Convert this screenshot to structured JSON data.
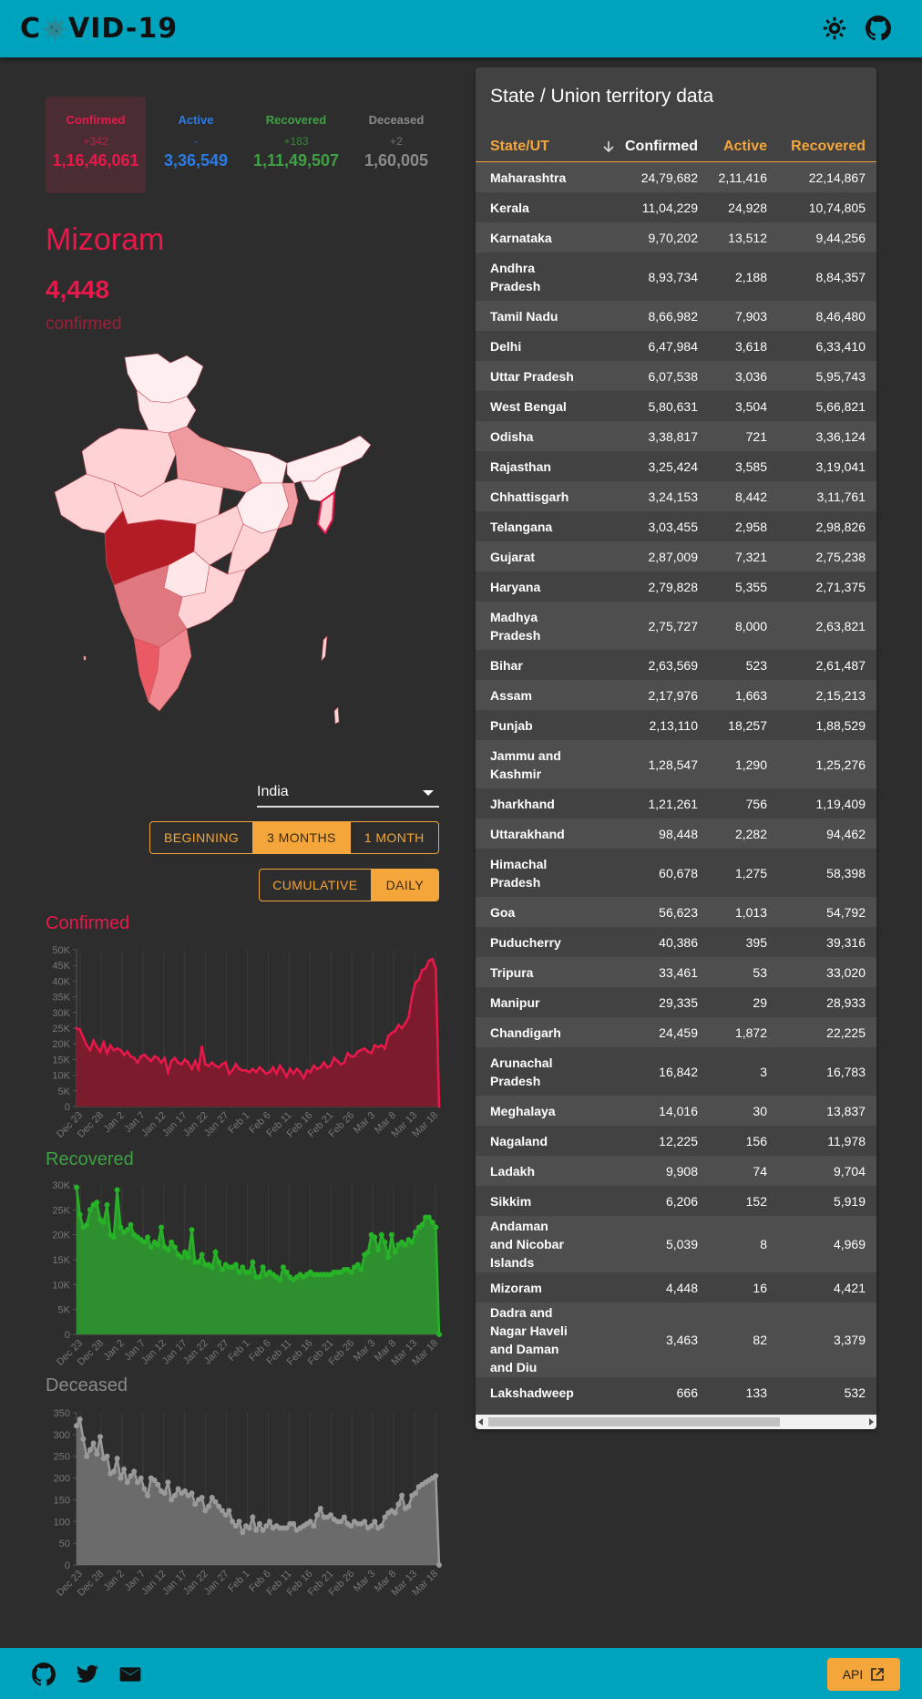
{
  "header": {
    "logo_text_left": "C",
    "logo_text_right": "VID-19",
    "icons": [
      "theme-icon",
      "github-icon"
    ]
  },
  "stats": [
    {
      "label": "Confirmed",
      "delta": "+342",
      "value": "1,16,46,061",
      "color": "#e8194a"
    },
    {
      "label": "Active",
      "delta": "-",
      "value": "3,36,549",
      "color": "#2a7be4"
    },
    {
      "label": "Recovered",
      "delta": "+183",
      "value": "1,11,49,507",
      "color": "#3ea043"
    },
    {
      "label": "Deceased",
      "delta": "+2",
      "value": "1,60,005",
      "color": "#8a8a8a"
    }
  ],
  "region": {
    "name": "Mizoram",
    "count": "4,448",
    "type": "confirmed"
  },
  "select": {
    "value": "India"
  },
  "time_range": {
    "options": [
      "BEGINNING",
      "3 MONTHS",
      "1 MONTH"
    ],
    "selected": "3 MONTHS"
  },
  "mode": {
    "options": [
      "CUMULATIVE",
      "DAILY"
    ],
    "selected": "DAILY"
  },
  "chart_data": [
    {
      "type": "area",
      "title": "Confirmed",
      "color": "#e8194a",
      "x_ticks": [
        "Dec 23",
        "Dec 28",
        "Jan 2",
        "Jan 7",
        "Jan 12",
        "Jan 17",
        "Jan 22",
        "Jan 27",
        "Feb 1",
        "Feb 6",
        "Feb 11",
        "Feb 16",
        "Feb 21",
        "Feb 26",
        "Mar 3",
        "Mar 8",
        "Mar 13",
        "Mar 18"
      ],
      "y_ticks": [
        "0",
        "5K",
        "10K",
        "15K",
        "20K",
        "25K",
        "30K",
        "35K",
        "40K",
        "45K",
        "50K"
      ],
      "ylim": [
        0,
        50000
      ],
      "values": [
        25000,
        24500,
        22000,
        19500,
        18000,
        21000,
        19000,
        17500,
        20500,
        17000,
        19500,
        18000,
        18500,
        18000,
        16500,
        17500,
        16000,
        15500,
        14000,
        16000,
        16500,
        15500,
        14500,
        16000,
        15500,
        14000,
        15500,
        11000,
        14500,
        15500,
        14000,
        13500,
        15000,
        14000,
        12000,
        14500,
        12000,
        19000,
        13500,
        13000,
        14000,
        13000,
        12500,
        13500,
        14000,
        10500,
        11500,
        13500,
        12000,
        11500,
        11500,
        11000,
        12000,
        11000,
        12500,
        11500,
        10500,
        11000,
        12500,
        10500,
        13000,
        11500,
        9500,
        12000,
        10500,
        12000,
        11000,
        9000,
        11500,
        11000,
        13000,
        12000,
        12500,
        14000,
        12500,
        13000,
        15500,
        14500,
        13500,
        14000,
        17000,
        16000,
        16000,
        17500,
        18000,
        18500,
        17500,
        17000,
        19500,
        19000,
        19500,
        18500,
        22500,
        23500,
        24000,
        26000,
        25000,
        26500,
        28500,
        35000,
        39500,
        40500,
        43500,
        44000,
        46500,
        47000,
        44000,
        0
      ]
    },
    {
      "type": "area",
      "title": "Recovered",
      "color": "#3ea043",
      "x_ticks": [
        "Dec 23",
        "Dec 28",
        "Jan 2",
        "Jan 7",
        "Jan 12",
        "Jan 17",
        "Jan 22",
        "Jan 27",
        "Feb 1",
        "Feb 6",
        "Feb 11",
        "Feb 16",
        "Feb 21",
        "Feb 26",
        "Mar 3",
        "Mar 8",
        "Mar 13",
        "Mar 18"
      ],
      "y_ticks": [
        "0",
        "5K",
        "10K",
        "15K",
        "20K",
        "25K",
        "30K"
      ],
      "ylim": [
        0,
        30000
      ],
      "values": [
        29500,
        24000,
        21500,
        22000,
        25000,
        26000,
        26500,
        23000,
        22500,
        26000,
        20000,
        19500,
        29000,
        21500,
        20500,
        21000,
        22000,
        20000,
        19500,
        19000,
        18500,
        19500,
        17500,
        18500,
        18000,
        21500,
        17500,
        17000,
        18500,
        17500,
        16000,
        15500,
        16500,
        15500,
        21000,
        14500,
        14500,
        16000,
        14000,
        14000,
        13500,
        16500,
        14500,
        13000,
        14000,
        13500,
        13500,
        14000,
        12500,
        13500,
        12500,
        12500,
        14500,
        11500,
        11500,
        13500,
        12000,
        12500,
        12000,
        11500,
        11000,
        13500,
        12500,
        11500,
        11000,
        11500,
        12000,
        11500,
        12000,
        12500,
        12000,
        12000,
        12000,
        12000,
        12000,
        12000,
        12500,
        12500,
        12500,
        13000,
        13000,
        12500,
        13500,
        14000,
        13000,
        16000,
        16500,
        20000,
        19500,
        17000,
        20000,
        18500,
        15500,
        20000,
        16500,
        18000,
        18500,
        18000,
        19000,
        18500,
        20500,
        21500,
        22000,
        23500,
        23500,
        22500,
        21500,
        0
      ]
    },
    {
      "type": "area",
      "title": "Deceased",
      "color": "#8a8a8a",
      "x_ticks": [
        "Dec 23",
        "Dec 28",
        "Jan 2",
        "Jan 7",
        "Jan 12",
        "Jan 17",
        "Jan 22",
        "Jan 27",
        "Feb 1",
        "Feb 6",
        "Feb 11",
        "Feb 16",
        "Feb 21",
        "Feb 26",
        "Mar 3",
        "Mar 8",
        "Mar 13",
        "Mar 18"
      ],
      "y_ticks": [
        "0",
        "50",
        "100",
        "150",
        "200",
        "250",
        "300",
        "350"
      ],
      "ylim": [
        0,
        350
      ],
      "values": [
        320,
        335,
        290,
        250,
        265,
        280,
        255,
        295,
        245,
        250,
        210,
        215,
        245,
        200,
        220,
        190,
        205,
        215,
        190,
        200,
        175,
        160,
        200,
        195,
        185,
        170,
        165,
        190,
        150,
        160,
        175,
        165,
        170,
        160,
        165,
        140,
        150,
        155,
        125,
        135,
        155,
        145,
        135,
        125,
        115,
        125,
        100,
        90,
        100,
        75,
        90,
        85,
        110,
        80,
        95,
        80,
        90,
        100,
        85,
        90,
        85,
        85,
        85,
        95,
        95,
        80,
        85,
        90,
        95,
        100,
        90,
        115,
        130,
        110,
        110,
        115,
        105,
        100,
        100,
        110,
        95,
        90,
        100,
        95,
        95,
        100,
        85,
        90,
        100,
        85,
        90,
        110,
        120,
        125,
        120,
        140,
        160,
        130,
        135,
        160,
        165,
        180,
        185,
        190,
        195,
        200,
        205,
        0
      ]
    }
  ],
  "table": {
    "title": "State / Union territory data",
    "headers": {
      "name": "State/UT",
      "confirmed": "Confirmed",
      "active": "Active",
      "recovered": "Recovered"
    },
    "rows": [
      {
        "n1": "Maharashtra",
        "n2": "",
        "n3": "",
        "c": "24,79,682",
        "a": "2,11,416",
        "r": "22,14,867"
      },
      {
        "n1": "Kerala",
        "n2": "",
        "n3": "",
        "c": "11,04,229",
        "a": "24,928",
        "r": "10,74,805"
      },
      {
        "n1": "Karnataka",
        "n2": "",
        "n3": "",
        "c": "9,70,202",
        "a": "13,512",
        "r": "9,44,256"
      },
      {
        "n1": "Andhra",
        "n2": "Pradesh",
        "n3": "",
        "c": "8,93,734",
        "a": "2,188",
        "r": "8,84,357"
      },
      {
        "n1": "Tamil Nadu",
        "n2": "",
        "n3": "",
        "c": "8,66,982",
        "a": "7,903",
        "r": "8,46,480"
      },
      {
        "n1": "Delhi",
        "n2": "",
        "n3": "",
        "c": "6,47,984",
        "a": "3,618",
        "r": "6,33,410"
      },
      {
        "n1": "Uttar Pradesh",
        "n2": "",
        "n3": "",
        "c": "6,07,538",
        "a": "3,036",
        "r": "5,95,743"
      },
      {
        "n1": "West Bengal",
        "n2": "",
        "n3": "",
        "c": "5,80,631",
        "a": "3,504",
        "r": "5,66,821"
      },
      {
        "n1": "Odisha",
        "n2": "",
        "n3": "",
        "c": "3,38,817",
        "a": "721",
        "r": "3,36,124"
      },
      {
        "n1": "Rajasthan",
        "n2": "",
        "n3": "",
        "c": "3,25,424",
        "a": "3,585",
        "r": "3,19,041"
      },
      {
        "n1": "Chhattisgarh",
        "n2": "",
        "n3": "",
        "c": "3,24,153",
        "a": "8,442",
        "r": "3,11,761"
      },
      {
        "n1": "Telangana",
        "n2": "",
        "n3": "",
        "c": "3,03,455",
        "a": "2,958",
        "r": "2,98,826"
      },
      {
        "n1": "Gujarat",
        "n2": "",
        "n3": "",
        "c": "2,87,009",
        "a": "7,321",
        "r": "2,75,238"
      },
      {
        "n1": "Haryana",
        "n2": "",
        "n3": "",
        "c": "2,79,828",
        "a": "5,355",
        "r": "2,71,375"
      },
      {
        "n1": "Madhya",
        "n2": "Pradesh",
        "n3": "",
        "c": "2,75,727",
        "a": "8,000",
        "r": "2,63,821"
      },
      {
        "n1": "Bihar",
        "n2": "",
        "n3": "",
        "c": "2,63,569",
        "a": "523",
        "r": "2,61,487"
      },
      {
        "n1": "Assam",
        "n2": "",
        "n3": "",
        "c": "2,17,976",
        "a": "1,663",
        "r": "2,15,213"
      },
      {
        "n1": "Punjab",
        "n2": "",
        "n3": "",
        "c": "2,13,110",
        "a": "18,257",
        "r": "1,88,529"
      },
      {
        "n1": "Jammu and",
        "n2": "Kashmir",
        "n3": "",
        "c": "1,28,547",
        "a": "1,290",
        "r": "1,25,276"
      },
      {
        "n1": "Jharkhand",
        "n2": "",
        "n3": "",
        "c": "1,21,261",
        "a": "756",
        "r": "1,19,409"
      },
      {
        "n1": "Uttarakhand",
        "n2": "",
        "n3": "",
        "c": "98,448",
        "a": "2,282",
        "r": "94,462"
      },
      {
        "n1": "Himachal",
        "n2": "Pradesh",
        "n3": "",
        "c": "60,678",
        "a": "1,275",
        "r": "58,398"
      },
      {
        "n1": "Goa",
        "n2": "",
        "n3": "",
        "c": "56,623",
        "a": "1,013",
        "r": "54,792"
      },
      {
        "n1": "Puducherry",
        "n2": "",
        "n3": "",
        "c": "40,386",
        "a": "395",
        "r": "39,316"
      },
      {
        "n1": "Tripura",
        "n2": "",
        "n3": "",
        "c": "33,461",
        "a": "53",
        "r": "33,020"
      },
      {
        "n1": "Manipur",
        "n2": "",
        "n3": "",
        "c": "29,335",
        "a": "29",
        "r": "28,933"
      },
      {
        "n1": "Chandigarh",
        "n2": "",
        "n3": "",
        "c": "24,459",
        "a": "1,872",
        "r": "22,225"
      },
      {
        "n1": "Arunachal",
        "n2": "Pradesh",
        "n3": "",
        "c": "16,842",
        "a": "3",
        "r": "16,783"
      },
      {
        "n1": "Meghalaya",
        "n2": "",
        "n3": "",
        "c": "14,016",
        "a": "30",
        "r": "13,837"
      },
      {
        "n1": "Nagaland",
        "n2": "",
        "n3": "",
        "c": "12,225",
        "a": "156",
        "r": "11,978"
      },
      {
        "n1": "Ladakh",
        "n2": "",
        "n3": "",
        "c": "9,908",
        "a": "74",
        "r": "9,704"
      },
      {
        "n1": "Sikkim",
        "n2": "",
        "n3": "",
        "c": "6,206",
        "a": "152",
        "r": "5,919"
      },
      {
        "n1": "Andaman",
        "n2": "and Nicobar",
        "n3": "Islands",
        "c": "5,039",
        "a": "8",
        "r": "4,969"
      },
      {
        "n1": "Mizoram",
        "n2": "",
        "n3": "",
        "c": "4,448",
        "a": "16",
        "r": "4,421"
      },
      {
        "n1": "Dadra and",
        "n2": "Nagar Haveli",
        "n3": "and Daman",
        "n4": "and Diu",
        "c": "3,463",
        "a": "82",
        "r": "3,379"
      },
      {
        "n1": "Lakshadweep",
        "n2": "",
        "n3": "",
        "c": "666",
        "a": "133",
        "r": "532"
      }
    ]
  },
  "footer": {
    "icons": [
      "github-icon",
      "twitter-icon",
      "mail-icon"
    ],
    "api_label": "API"
  }
}
